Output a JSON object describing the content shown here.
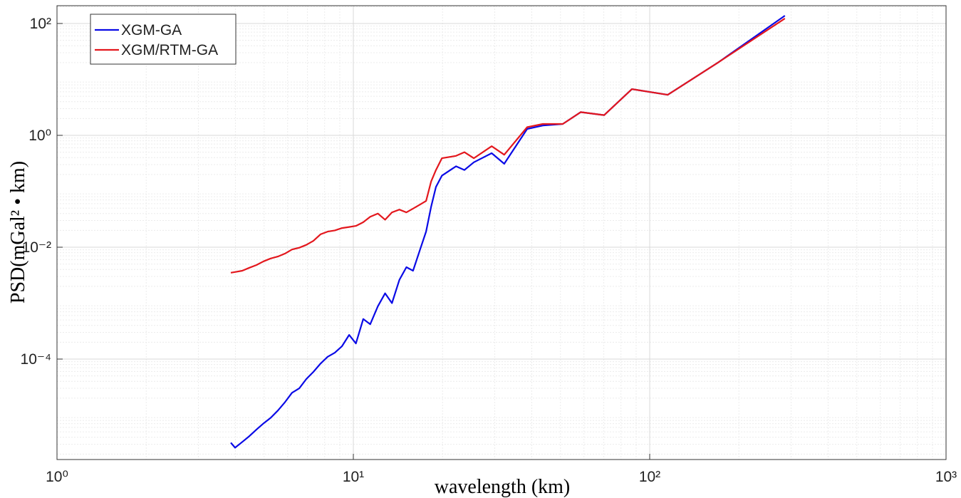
{
  "chart_data": {
    "type": "line",
    "xlabel": "wavelength (km)",
    "ylabel": "PSD(mGal² • km)",
    "xscale": "log",
    "yscale": "log",
    "grid": true,
    "legend": "upper-left",
    "xlim": [
      1,
      1000
    ],
    "ylim": [
      1.6e-06,
      208
    ],
    "xticks": [
      {
        "value": 1,
        "label": "10⁰"
      },
      {
        "value": 10,
        "label": "10¹"
      },
      {
        "value": 100,
        "label": "10²"
      },
      {
        "value": 1000,
        "label": "10³"
      }
    ],
    "yticks": [
      {
        "value": 0.0001,
        "label": "10⁻⁴"
      },
      {
        "value": 0.01,
        "label": "10⁻²"
      },
      {
        "value": 1,
        "label": "10⁰"
      },
      {
        "value": 100,
        "label": "10²"
      }
    ],
    "x": [
      3.86,
      3.99,
      4.22,
      4.46,
      4.71,
      4.98,
      5.26,
      5.56,
      5.88,
      6.21,
      6.57,
      6.94,
      7.33,
      7.75,
      8.19,
      8.66,
      9.16,
      9.68,
      10.2,
      10.8,
      11.4,
      12.1,
      12.8,
      13.5,
      14.3,
      15.1,
      15.9,
      16.8,
      17.6,
      18.3,
      19.0,
      19.9,
      22.2,
      23.7,
      25.5,
      29.3,
      32.3,
      38.6,
      43.6,
      50.9,
      58.5,
      70.2,
      87.1,
      115,
      170,
      286
    ],
    "series": [
      {
        "name": "XGM-GA",
        "color": "#0a0ae6",
        "values": [
          3.2e-06,
          2.6e-06,
          3.3e-06,
          4.2e-06,
          5.5e-06,
          7.1e-06,
          8.9e-06,
          1.2e-05,
          1.7e-05,
          2.5e-05,
          3e-05,
          4.4e-05,
          5.9e-05,
          8.3e-05,
          0.00011,
          0.00013,
          0.00017,
          0.00027,
          0.00019,
          0.00052,
          0.00042,
          0.00088,
          0.0015,
          0.001,
          0.0026,
          0.0044,
          0.0038,
          0.0091,
          0.019,
          0.053,
          0.12,
          0.19,
          0.28,
          0.24,
          0.33,
          0.48,
          0.31,
          1.3,
          1.5,
          1.6,
          2.6,
          2.3,
          6.7,
          5.3,
          20,
          138
        ]
      },
      {
        "name": "XGM/RTM-GA",
        "color": "#e3171d",
        "values": [
          0.0035,
          0.0036,
          0.0038,
          0.0043,
          0.0048,
          0.0056,
          0.0063,
          0.0068,
          0.0077,
          0.0091,
          0.0098,
          0.011,
          0.013,
          0.017,
          0.019,
          0.02,
          0.022,
          0.023,
          0.024,
          0.028,
          0.035,
          0.04,
          0.031,
          0.042,
          0.047,
          0.042,
          0.049,
          0.058,
          0.067,
          0.15,
          0.24,
          0.39,
          0.43,
          0.5,
          0.39,
          0.64,
          0.45,
          1.4,
          1.6,
          1.6,
          2.6,
          2.3,
          6.7,
          5.3,
          20,
          123
        ]
      }
    ]
  }
}
